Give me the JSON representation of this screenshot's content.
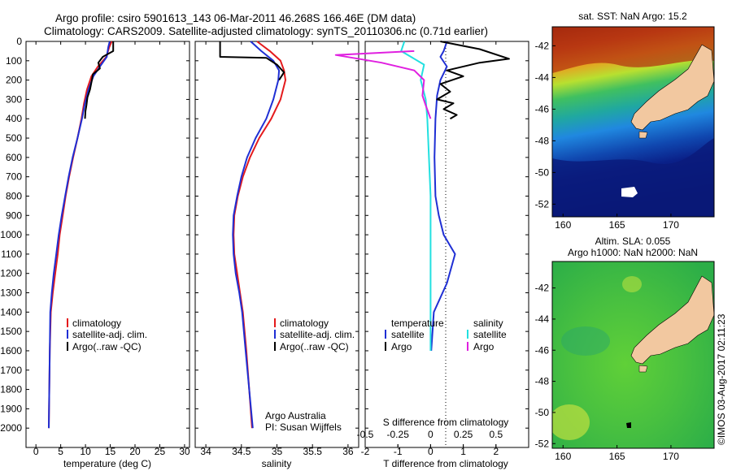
{
  "header": {
    "line1": "Argo profile: csiro 5901613_143 06-Mar-2011 46.268S 166.46E (DM data)",
    "line2": "Climatology: CARS2009. Satellite-adjusted climatology: synTS_20110306.nc (0.71d earlier)"
  },
  "legend_labels": {
    "climatology": "climatology",
    "satellite_adj": "satellite-adj. clim.",
    "argo": "Argo(..raw -QC)",
    "temperature_head": "temperature",
    "salinity_head": "salinity",
    "satellite": "satellite",
    "argo_short": "Argo"
  },
  "credits": {
    "line1": "Argo Australia",
    "line2": "PI: Susan Wijffels"
  },
  "map_labels": {
    "sst_title": "sat. SST: NaN Argo: 15.2",
    "sla_title1": "Altim. SLA: 0.055",
    "sla_title2": "Argo h1000: NaN h2000: NaN"
  },
  "watermark": "©IMOS 03-Aug-2017 02:11:23",
  "colors": {
    "climatology": "#e41a1c",
    "satellite": "#1f2fd4",
    "argo": "#000000",
    "salinity_satellite": "#22e0e0",
    "salinity_argo": "#e020e0",
    "land": "#f2c8a0"
  },
  "chart_data": [
    {
      "type": "line",
      "xlabel": "temperature (deg C)",
      "ylim": [
        2100,
        0
      ],
      "xlim": [
        -2,
        31
      ],
      "xticks": [
        0,
        5,
        10,
        15,
        20,
        25,
        30
      ],
      "yticks": [
        0,
        100,
        200,
        300,
        400,
        500,
        600,
        700,
        800,
        900,
        1000,
        1100,
        1200,
        1300,
        1400,
        1500,
        1600,
        1700,
        1800,
        1900,
        2000
      ],
      "series": [
        {
          "name": "climatology",
          "color": "#e41a1c",
          "points": [
            [
              15.3,
              0
            ],
            [
              14.8,
              30
            ],
            [
              14.2,
              80
            ],
            [
              12.5,
              130
            ],
            [
              11.2,
              180
            ],
            [
              10.3,
              250
            ],
            [
              9.7,
              320
            ],
            [
              9.2,
              400
            ],
            [
              8.4,
              500
            ],
            [
              7.5,
              600
            ],
            [
              6.7,
              700
            ],
            [
              6.0,
              800
            ],
            [
              5.4,
              900
            ],
            [
              4.8,
              1000
            ],
            [
              4.4,
              1100
            ],
            [
              3.9,
              1200
            ],
            [
              3.4,
              1300
            ],
            [
              3.0,
              1400
            ],
            [
              2.8,
              1600
            ],
            [
              2.7,
              1800
            ],
            [
              2.6,
              2000
            ]
          ]
        },
        {
          "name": "satellite-adj. clim.",
          "color": "#1f2fd4",
          "points": [
            [
              14.9,
              0
            ],
            [
              14.6,
              30
            ],
            [
              14.3,
              80
            ],
            [
              12.9,
              130
            ],
            [
              11.6,
              180
            ],
            [
              10.6,
              250
            ],
            [
              9.9,
              320
            ],
            [
              9.3,
              400
            ],
            [
              8.4,
              500
            ],
            [
              7.4,
              600
            ],
            [
              6.6,
              700
            ],
            [
              5.9,
              800
            ],
            [
              5.2,
              900
            ],
            [
              4.6,
              1000
            ],
            [
              4.1,
              1100
            ],
            [
              3.6,
              1200
            ],
            [
              3.2,
              1300
            ],
            [
              2.9,
              1400
            ],
            [
              2.8,
              1600
            ],
            [
              2.7,
              1800
            ],
            [
              2.6,
              2000
            ]
          ]
        },
        {
          "name": "Argo(..raw -QC)",
          "color": "#000000",
          "points": [
            [
              15.6,
              0
            ],
            [
              15.6,
              50
            ],
            [
              13.5,
              80
            ],
            [
              12.6,
              110
            ],
            [
              12.9,
              140
            ],
            [
              11.5,
              170
            ],
            [
              11.3,
              200
            ],
            [
              10.9,
              250
            ],
            [
              10.4,
              290
            ],
            [
              10.2,
              330
            ],
            [
              10.0,
              360
            ],
            [
              9.9,
              400
            ]
          ]
        }
      ]
    },
    {
      "type": "line",
      "xlabel": "salinity",
      "ylim": [
        2100,
        0
      ],
      "xlim": [
        33.85,
        36.15
      ],
      "xticks": [
        34,
        34.5,
        35,
        35.5,
        36
      ],
      "series": [
        {
          "name": "climatology",
          "color": "#e41a1c",
          "points": [
            [
              34.72,
              0
            ],
            [
              34.9,
              50
            ],
            [
              35.05,
              100
            ],
            [
              35.1,
              150
            ],
            [
              35.12,
              200
            ],
            [
              35.05,
              300
            ],
            [
              34.92,
              400
            ],
            [
              34.75,
              500
            ],
            [
              34.62,
              600
            ],
            [
              34.52,
              700
            ],
            [
              34.45,
              800
            ],
            [
              34.4,
              900
            ],
            [
              34.39,
              1000
            ],
            [
              34.4,
              1100
            ],
            [
              34.44,
              1200
            ],
            [
              34.48,
              1300
            ],
            [
              34.52,
              1400
            ],
            [
              34.57,
              1600
            ],
            [
              34.61,
              1800
            ],
            [
              34.65,
              2000
            ]
          ]
        },
        {
          "name": "satellite-adj. clim.",
          "color": "#1f2fd4",
          "points": [
            [
              34.63,
              0
            ],
            [
              34.78,
              50
            ],
            [
              34.95,
              100
            ],
            [
              35.03,
              150
            ],
            [
              35.02,
              200
            ],
            [
              34.95,
              300
            ],
            [
              34.85,
              400
            ],
            [
              34.7,
              500
            ],
            [
              34.58,
              600
            ],
            [
              34.5,
              700
            ],
            [
              34.44,
              800
            ],
            [
              34.39,
              900
            ],
            [
              34.38,
              1000
            ],
            [
              34.39,
              1100
            ],
            [
              34.42,
              1200
            ],
            [
              34.47,
              1300
            ],
            [
              34.51,
              1400
            ],
            [
              34.56,
              1600
            ],
            [
              34.61,
              1800
            ],
            [
              34.66,
              2000
            ]
          ]
        },
        {
          "name": "Argo(..raw -QC)",
          "color": "#000000",
          "points": [
            [
              34.2,
              0
            ],
            [
              34.2,
              80
            ],
            [
              34.85,
              85
            ],
            [
              35.0,
              120
            ],
            [
              35.1,
              160
            ],
            [
              35.03,
              200
            ]
          ]
        }
      ]
    },
    {
      "type": "line",
      "xlabel": "T difference from climatology",
      "xlabel_top": "S difference from climatology",
      "ylim": [
        2100,
        0
      ],
      "xlim": [
        -2,
        3
      ],
      "xticks": [
        -2,
        -1,
        0,
        1,
        2
      ],
      "xticks_top": [
        -0.5,
        -0.25,
        0,
        0.25,
        0.5
      ],
      "xticks_top_labels": [
        "-0.5",
        "-0.25",
        "0",
        "0.25",
        "0.5"
      ],
      "series": [
        {
          "name": "temperature satellite",
          "color": "#1f2fd4",
          "points": [
            [
              0.5,
              0
            ],
            [
              0.4,
              50
            ],
            [
              0.3,
              80
            ],
            [
              0.5,
              130
            ],
            [
              0.3,
              200
            ],
            [
              0.2,
              280
            ],
            [
              0.15,
              400
            ],
            [
              0.12,
              600
            ],
            [
              0.15,
              800
            ],
            [
              0.25,
              900
            ],
            [
              0.4,
              1000
            ],
            [
              0.75,
              1100
            ],
            [
              0.5,
              1250
            ],
            [
              0.1,
              1400
            ],
            [
              0.02,
              1600
            ]
          ]
        },
        {
          "name": "temperature Argo",
          "color": "#000000",
          "points": [
            [
              0.3,
              0
            ],
            [
              1.5,
              40
            ],
            [
              2.4,
              90
            ],
            [
              1.5,
              110
            ],
            [
              0.5,
              150
            ],
            [
              1.0,
              180
            ],
            [
              0.3,
              220
            ],
            [
              0.6,
              260
            ],
            [
              0.2,
              300
            ],
            [
              0.7,
              320
            ],
            [
              0.4,
              350
            ],
            [
              0.8,
              380
            ],
            [
              0.6,
              400
            ]
          ]
        },
        {
          "name": "salinity satellite",
          "color": "#22e0e0",
          "points": [
            [
              -0.8,
              0
            ],
            [
              -0.9,
              50
            ],
            [
              -0.6,
              80
            ],
            [
              -0.2,
              120
            ],
            [
              -0.3,
              200
            ],
            [
              -0.15,
              300
            ],
            [
              -0.1,
              400
            ],
            [
              -0.05,
              600
            ],
            [
              0.0,
              800
            ],
            [
              0.0,
              1000
            ],
            [
              0.0,
              1400
            ],
            [
              0.0,
              1600
            ]
          ]
        },
        {
          "name": "salinity Argo",
          "color": "#e020e0",
          "points": [
            [
              -0.5,
              50
            ],
            [
              -2.9,
              70
            ],
            [
              -1.5,
              110
            ],
            [
              -0.5,
              150
            ],
            [
              -0.2,
              200
            ],
            [
              -0.25,
              280
            ],
            [
              -0.15,
              330
            ],
            [
              0.0,
              400
            ]
          ]
        }
      ]
    }
  ],
  "maps": [
    {
      "name": "sat-sst",
      "xlim": [
        159,
        174
      ],
      "ylim": [
        -52.8,
        -40.8
      ],
      "xticks": [
        160,
        165,
        170
      ],
      "yticks": [
        -42,
        -44,
        -46,
        -48,
        -50,
        -52
      ]
    },
    {
      "name": "altim-sla",
      "xlim": [
        159,
        174
      ],
      "ylim": [
        -52.3,
        -40.3
      ],
      "xticks": [
        160,
        165,
        170
      ],
      "yticks": [
        -42,
        -44,
        -46,
        -48,
        -50,
        -52
      ]
    }
  ]
}
